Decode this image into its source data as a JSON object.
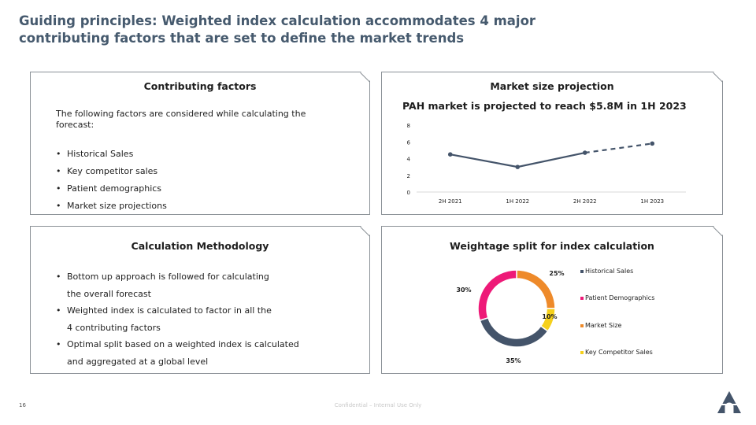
{
  "title": "Guiding principles: Weighted index calculation accommodates 4 major contributing factors that are set to define the market trends",
  "panels": {
    "contributing": {
      "title": "Contributing factors",
      "intro": "The following factors are considered while calculating the forecast:",
      "bullets": [
        "Historical Sales",
        "Key competitor sales",
        "Patient demographics",
        "Market size projections"
      ]
    },
    "market": {
      "title": "Market size projection",
      "subtitle": "PAH market is projected to reach $5.8M in 1H 2023"
    },
    "methodology": {
      "title": "Calculation Methodology",
      "bullets": [
        {
          "line1": "Bottom up approach is followed for calculating",
          "line2": "the overall forecast"
        },
        {
          "line1": "Weighted index is calculated to factor in all the",
          "line2": "4 contributing factors"
        },
        {
          "line1": "Optimal split based on a weighted index is calculated",
          "line2": "and aggregated at a global level"
        }
      ]
    },
    "weightage": {
      "title": "Weightage split for index calculation"
    }
  },
  "chart_data": [
    {
      "type": "line",
      "categories": [
        "2H 2021",
        "1H 2022",
        "2H 2022",
        "1H 2023"
      ],
      "values": [
        4.5,
        3.0,
        4.7,
        5.8
      ],
      "projected_from_index": 2,
      "ylim": [
        0,
        8
      ],
      "yticks": [
        0,
        2,
        4,
        6,
        8
      ],
      "series_color": "#44546a",
      "grid": false
    },
    {
      "type": "pie",
      "style": "donut",
      "labels": [
        "Historical Sales",
        "Patient Demographics",
        "Market Size",
        "Key Competitor Sales"
      ],
      "values": [
        35,
        30,
        25,
        10
      ],
      "value_labels": [
        "35%",
        "30%",
        "25%",
        "10%"
      ],
      "colors": [
        "#44546a",
        "#ee1a78",
        "#ee8a2a",
        "#f5d01c"
      ],
      "legend": "right"
    }
  ],
  "footer": {
    "page_number": "16",
    "confidential": "Confidential – Internal Use Only"
  }
}
